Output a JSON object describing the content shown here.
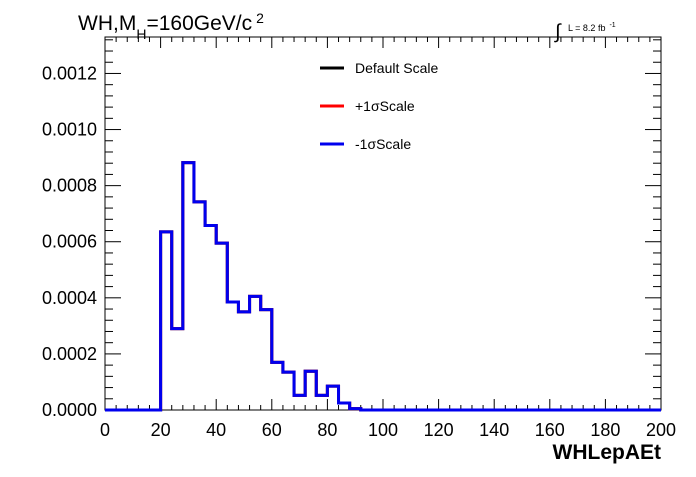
{
  "chart_data": {
    "type": "histogram-step",
    "title": {
      "prefix": "WH,M",
      "subscript": "H",
      "value": "=160GeV/c",
      "superscript": "2"
    },
    "luminosity": {
      "integral_symbol": "∫",
      "text": "L = 8.2 fb",
      "superscript": "-1"
    },
    "xlabel": "WHLepAEt",
    "ylabel": "",
    "xlim": [
      0,
      200
    ],
    "ylim": [
      0,
      0.00133
    ],
    "x_ticks": [
      0,
      20,
      40,
      60,
      80,
      100,
      120,
      140,
      160,
      180,
      200
    ],
    "x_tick_labels": [
      "0",
      "20",
      "40",
      "60",
      "80",
      "100",
      "120",
      "140",
      "160",
      "180",
      "200"
    ],
    "y_ticks": [
      0,
      0.0002,
      0.0004,
      0.0006,
      0.0008,
      0.001,
      0.0012
    ],
    "y_tick_labels": [
      "0.0000",
      "0.0002",
      "0.0004",
      "0.0006",
      "0.0008",
      "0.0010",
      "0.0012"
    ],
    "grid": false,
    "legend_position": "top-center",
    "bin_edges": [
      0,
      4,
      8,
      12,
      16,
      20,
      24,
      28,
      32,
      36,
      40,
      44,
      48,
      52,
      56,
      60,
      64,
      68,
      72,
      76,
      80,
      84,
      88,
      92,
      96,
      100,
      104,
      108,
      112,
      116,
      120,
      124,
      128,
      132,
      136,
      140,
      144,
      148,
      152,
      156,
      160,
      164,
      168,
      172,
      176,
      180,
      184,
      188,
      192,
      196,
      200
    ],
    "series": [
      {
        "name": "Default Scale",
        "color": "#000000",
        "values": [
          0,
          0,
          0,
          0,
          0,
          0.000635,
          0.00029,
          0.000882,
          0.000742,
          0.000658,
          0.000595,
          0.000385,
          0.00035,
          0.000405,
          0.000358,
          0.00017,
          0.000135,
          5.2e-05,
          0.000138,
          5.2e-05,
          8.5e-05,
          2.5e-05,
          5e-06,
          0,
          0,
          0,
          0,
          0,
          0,
          0,
          0,
          0,
          0,
          0,
          0,
          0,
          0,
          0,
          0,
          0,
          0,
          0,
          0,
          0,
          0,
          0,
          0,
          0,
          0,
          0
        ]
      },
      {
        "name": "+1σScale",
        "color": "#ff0000",
        "values": [
          0,
          0,
          0,
          0,
          0,
          0.000635,
          0.00029,
          0.000882,
          0.000742,
          0.000658,
          0.000595,
          0.000385,
          0.00035,
          0.000405,
          0.000358,
          0.00017,
          0.000135,
          5.2e-05,
          0.000138,
          5.2e-05,
          8.5e-05,
          2.5e-05,
          5e-06,
          0,
          0,
          0,
          0,
          0,
          0,
          0,
          0,
          0,
          0,
          0,
          0,
          0,
          0,
          0,
          0,
          0,
          0,
          0,
          0,
          0,
          0,
          0,
          0,
          0,
          0,
          0
        ]
      },
      {
        "name": "-1σScale",
        "color": "#0000ee",
        "values": [
          0,
          0,
          0,
          0,
          0,
          0.000635,
          0.00029,
          0.000882,
          0.000742,
          0.000658,
          0.000595,
          0.000385,
          0.00035,
          0.000405,
          0.000358,
          0.00017,
          0.000135,
          5.2e-05,
          0.000138,
          5.2e-05,
          8.5e-05,
          2.5e-05,
          5e-06,
          0,
          0,
          0,
          0,
          0,
          0,
          0,
          0,
          0,
          0,
          0,
          0,
          0,
          0,
          0,
          0,
          0,
          0,
          0,
          0,
          0,
          0,
          0,
          0,
          0,
          0,
          0
        ]
      }
    ]
  }
}
